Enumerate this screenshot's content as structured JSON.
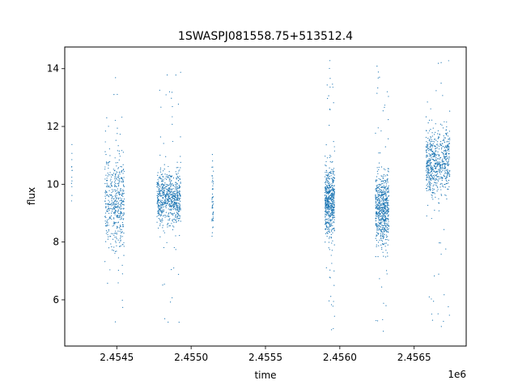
{
  "chart_data": {
    "type": "scatter",
    "title": "1SWASPJ081558.75+513512.4",
    "xlabel": "time",
    "ylabel": "flux",
    "offset_label": "1e6",
    "xlim": [
      2454150,
      2456850
    ],
    "ylim": [
      4.4,
      14.75
    ],
    "xticks": [
      2454500,
      2455000,
      2455500,
      2456000,
      2456500
    ],
    "xtick_labels": [
      "2.4545",
      "2.4550",
      "2.4555",
      "2.4560",
      "2.4565"
    ],
    "yticks": [
      6,
      8,
      10,
      12,
      14
    ],
    "ytick_labels": [
      "6",
      "8",
      "10",
      "12",
      "14"
    ],
    "grid": false,
    "series": [
      {
        "color": "#1f77b4",
        "marker": "point",
        "clusters": [
          {
            "x_range": [
              2454195,
              2454200
            ],
            "center": 10.4,
            "spread": 0.7,
            "range": [
              9.0,
              12.2
            ],
            "n": 14
          },
          {
            "x_range": [
              2454420,
              2454475
            ],
            "center": 9.4,
            "spread": 0.9,
            "range": [
              5.9,
              12.5
            ],
            "n": 160
          },
          {
            "x_range": [
              2454478,
              2454550
            ],
            "center": 9.3,
            "spread": 0.8,
            "range": [
              4.9,
              14.3
            ],
            "n": 320
          },
          {
            "x_range": [
              2454770,
              2454930
            ],
            "center": 9.5,
            "spread": 0.45,
            "range": [
              5.2,
              14.0
            ],
            "n": 700
          },
          {
            "x_range": [
              2455140,
              2455150
            ],
            "center": 9.4,
            "spread": 0.6,
            "range": [
              7.7,
              11.4
            ],
            "n": 50
          },
          {
            "x_range": [
              2455900,
              2455965
            ],
            "center": 9.4,
            "spread": 0.55,
            "range": [
              4.8,
              14.3
            ],
            "n": 600
          },
          {
            "x_range": [
              2456240,
              2456330
            ],
            "center": 9.1,
            "spread": 0.6,
            "range": [
              4.8,
              14.3
            ],
            "n": 650
          },
          {
            "x_range": [
              2456580,
              2456740
            ],
            "center": 10.8,
            "spread": 0.55,
            "range": [
              4.8,
              14.3
            ],
            "n": 650
          }
        ]
      }
    ]
  }
}
